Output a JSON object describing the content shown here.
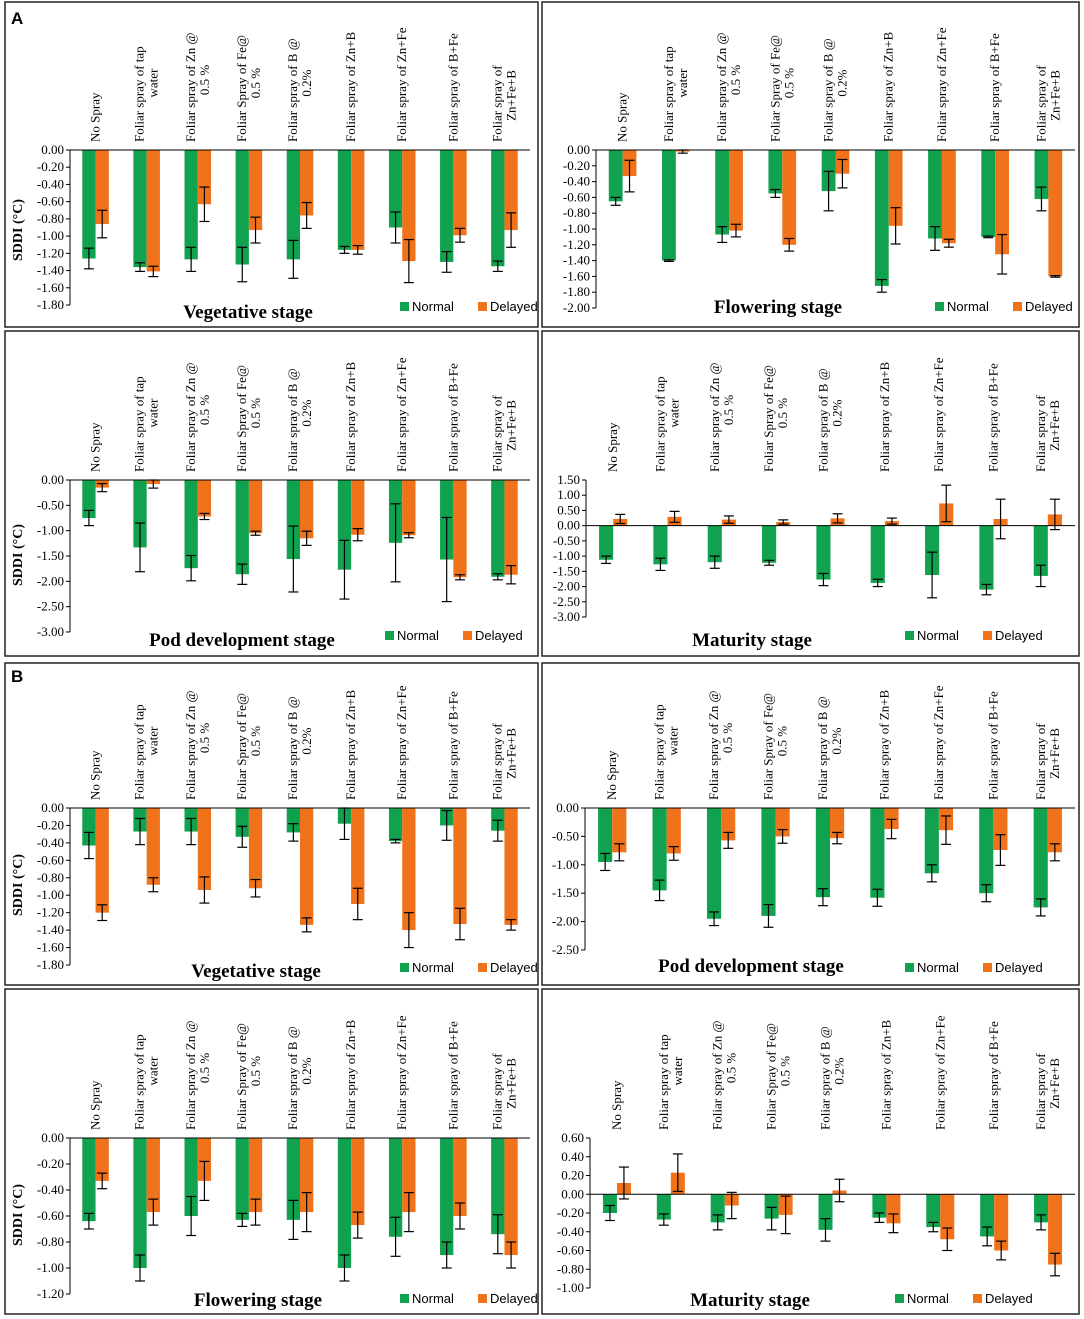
{
  "figure": {
    "colors": {
      "normal": "#11a24f",
      "delayed": "#f0731c",
      "error_bar": "#000000"
    },
    "categories": [
      "No Spray",
      "Foliar spray of tap water",
      "Foliar spray of Zn @ 0.5 %",
      "Foliar Spray of Fe@ 0.5 %",
      "Foliar spray of B @ 0.2%",
      "Foliar spray of Zn+B",
      "Foliar spray of Zn+Fe",
      "Foliar spray of B+Fe",
      "Foliar spray of Zn+Fe+B"
    ],
    "legend": [
      "Normal",
      "Delayed"
    ],
    "panel_labels": [
      "A",
      "B"
    ]
  },
  "chart_data": [
    {
      "type": "bar",
      "group": "A",
      "title": "Vegetative stage",
      "ylabel": "SDDI (°C)",
      "ylim": [
        -1.8,
        0
      ],
      "ystep": 0.2,
      "ydecimals": 2,
      "legend_position": "bottom-right",
      "series": [
        {
          "name": "Normal",
          "values": [
            -1.26,
            -1.36,
            -1.27,
            -1.33,
            -1.27,
            -1.16,
            -0.9,
            -1.3,
            -1.35
          ],
          "errors": [
            0.12,
            0.05,
            0.14,
            0.2,
            0.22,
            0.04,
            0.18,
            0.12,
            0.06
          ]
        },
        {
          "name": "Delayed",
          "values": [
            -0.86,
            -1.41,
            -0.63,
            -0.93,
            -0.76,
            -1.16,
            -1.29,
            -0.99,
            -0.93
          ],
          "errors": [
            0.16,
            0.06,
            0.2,
            0.15,
            0.15,
            0.05,
            0.25,
            0.08,
            0.2
          ]
        }
      ]
    },
    {
      "type": "bar",
      "group": "A",
      "title": "Flowering stage",
      "ylabel": "",
      "ylim": [
        -2.0,
        0
      ],
      "ystep": 0.2,
      "ydecimals": 2,
      "legend_position": "bottom-right",
      "series": [
        {
          "name": "Normal",
          "values": [
            -0.65,
            -1.4,
            -1.07,
            -0.55,
            -0.52,
            -1.72,
            -1.12,
            -1.1,
            -0.62
          ],
          "errors": [
            0.05,
            0.01,
            0.1,
            0.05,
            0.25,
            0.08,
            0.15,
            0.01,
            0.15
          ]
        },
        {
          "name": "Delayed",
          "values": [
            -0.33,
            -0.02,
            -1.02,
            -1.2,
            -0.3,
            -0.96,
            -1.18,
            -1.32,
            -1.6
          ],
          "errors": [
            0.2,
            0.02,
            0.08,
            0.08,
            0.18,
            0.23,
            0.05,
            0.25,
            0.01
          ]
        }
      ]
    },
    {
      "type": "bar",
      "group": "A",
      "title": "Pod development stage",
      "ylabel": "SDDI (°C)",
      "ylim": [
        -3.0,
        0
      ],
      "ystep": 0.5,
      "ydecimals": 2,
      "legend_position": "bottom-right",
      "series": [
        {
          "name": "Normal",
          "values": [
            -0.75,
            -1.33,
            -1.74,
            -1.86,
            -1.56,
            -1.77,
            -1.24,
            -1.57,
            -1.91
          ],
          "errors": [
            0.15,
            0.48,
            0.25,
            0.2,
            0.65,
            0.58,
            0.77,
            0.83,
            0.06
          ]
        },
        {
          "name": "Delayed",
          "values": [
            -0.15,
            -0.08,
            -0.72,
            -1.05,
            -1.15,
            -1.08,
            -1.09,
            -1.92,
            -1.87
          ],
          "errors": [
            0.08,
            0.08,
            0.06,
            0.04,
            0.14,
            0.12,
            0.05,
            0.05,
            0.18
          ]
        }
      ]
    },
    {
      "type": "bar",
      "group": "A",
      "title": "Maturity stage",
      "ylabel": "",
      "ylim": [
        -3.0,
        1.5
      ],
      "ystep": 0.5,
      "ydecimals": 2,
      "legend_position": "bottom-right",
      "series": [
        {
          "name": "Normal",
          "values": [
            -1.12,
            -1.27,
            -1.2,
            -1.22,
            -1.77,
            -1.88,
            -1.62,
            -2.1,
            -1.65
          ],
          "errors": [
            0.12,
            0.2,
            0.2,
            0.08,
            0.2,
            0.12,
            0.75,
            0.17,
            0.35
          ]
        },
        {
          "name": "Delayed",
          "values": [
            0.22,
            0.29,
            0.2,
            0.12,
            0.24,
            0.15,
            0.73,
            0.22,
            0.37
          ],
          "errors": [
            0.15,
            0.18,
            0.12,
            0.07,
            0.15,
            0.1,
            0.6,
            0.65,
            0.5
          ]
        }
      ]
    },
    {
      "type": "bar",
      "group": "B",
      "title": "Vegetative stage",
      "ylabel": "SDDI (°C)",
      "ylim": [
        -1.8,
        0
      ],
      "ystep": 0.2,
      "ydecimals": 2,
      "legend_position": "bottom-right",
      "series": [
        {
          "name": "Normal",
          "values": [
            -0.43,
            -0.27,
            -0.27,
            -0.33,
            -0.28,
            -0.18,
            -0.38,
            -0.2,
            -0.26
          ],
          "errors": [
            0.15,
            0.15,
            0.15,
            0.12,
            0.1,
            0.18,
            0.02,
            0.17,
            0.12
          ]
        },
        {
          "name": "Delayed",
          "values": [
            -1.2,
            -0.88,
            -0.94,
            -0.92,
            -1.34,
            -1.1,
            -1.4,
            -1.33,
            -1.34
          ],
          "errors": [
            0.09,
            0.08,
            0.15,
            0.1,
            0.08,
            0.18,
            0.2,
            0.18,
            0.06
          ]
        }
      ]
    },
    {
      "type": "bar",
      "group": "B",
      "title": "Pod development stage",
      "ylabel": "",
      "ylim": [
        -2.5,
        0
      ],
      "ystep": 0.5,
      "ydecimals": 2,
      "legend_position": "bottom-right",
      "series": [
        {
          "name": "Normal",
          "values": [
            -0.95,
            -1.45,
            -1.95,
            -1.9,
            -1.57,
            -1.58,
            -1.15,
            -1.5,
            -1.75
          ],
          "errors": [
            0.15,
            0.18,
            0.12,
            0.2,
            0.15,
            0.15,
            0.15,
            0.15,
            0.15
          ]
        },
        {
          "name": "Delayed",
          "values": [
            -0.78,
            -0.8,
            -0.57,
            -0.5,
            -0.53,
            -0.37,
            -0.39,
            -0.74,
            -0.78
          ],
          "errors": [
            0.15,
            0.12,
            0.14,
            0.12,
            0.1,
            0.17,
            0.25,
            0.27,
            0.15
          ]
        }
      ]
    },
    {
      "type": "bar",
      "group": "B",
      "title": "Flowering stage",
      "ylabel": "SDDI (°C)",
      "ylim": [
        -1.2,
        0
      ],
      "ystep": 0.2,
      "ydecimals": 2,
      "legend_position": "bottom-right",
      "series": [
        {
          "name": "Normal",
          "values": [
            -0.64,
            -1.0,
            -0.6,
            -0.63,
            -0.63,
            -1.0,
            -0.76,
            -0.9,
            -0.74
          ],
          "errors": [
            0.06,
            0.1,
            0.15,
            0.05,
            0.15,
            0.1,
            0.15,
            0.1,
            0.15
          ]
        },
        {
          "name": "Delayed",
          "values": [
            -0.33,
            -0.57,
            -0.33,
            -0.57,
            -0.57,
            -0.67,
            -0.57,
            -0.6,
            -0.9
          ],
          "errors": [
            0.06,
            0.1,
            0.15,
            0.1,
            0.15,
            0.1,
            0.15,
            0.1,
            0.1
          ]
        }
      ]
    },
    {
      "type": "bar",
      "group": "B",
      "title": "Maturity stage",
      "ylabel": "",
      "ylim": [
        -1.0,
        0.6
      ],
      "ystep": 0.2,
      "ydecimals": 2,
      "legend_position": "bottom-right",
      "series": [
        {
          "name": "Normal",
          "values": [
            -0.2,
            -0.27,
            -0.3,
            -0.26,
            -0.38,
            -0.25,
            -0.35,
            -0.45,
            -0.3
          ],
          "errors": [
            0.08,
            0.06,
            0.08,
            0.12,
            0.12,
            0.05,
            0.05,
            0.1,
            0.08
          ]
        },
        {
          "name": "Delayed",
          "values": [
            0.12,
            0.23,
            -0.12,
            -0.22,
            0.04,
            -0.31,
            -0.48,
            -0.6,
            -0.75
          ],
          "errors": [
            0.17,
            0.2,
            0.14,
            0.2,
            0.12,
            0.1,
            0.12,
            0.1,
            0.12
          ]
        }
      ]
    }
  ]
}
